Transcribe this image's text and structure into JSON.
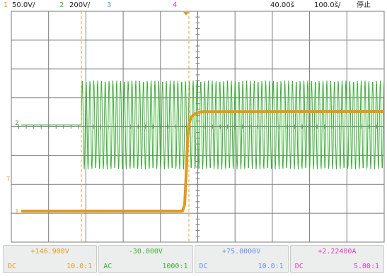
{
  "header": {
    "ch1_num": "1",
    "ch1_scale": "50.0V/",
    "ch2_num": "2",
    "ch2_scale": "200V/",
    "ch3_num": "3",
    "ch4_num": "4",
    "delay": "40.00š",
    "timebase": "100.0š/",
    "run_state": "停止"
  },
  "markers": {
    "ch2_marker": "2",
    "ch1_marker": "1",
    "trigger_level": "T"
  },
  "colors": {
    "ch1": "#e09a1e",
    "ch2": "#3fb03a",
    "ch3": "#6a8ef0",
    "ch4": "#e040c0",
    "grid": "#7a7a7a",
    "cursor": "#e8a33a"
  },
  "channels": [
    {
      "value": "+146.900V",
      "coupling": "DC",
      "probe": "10.0:1",
      "color": "#e09a1e"
    },
    {
      "value": "-30.000V",
      "coupling": "AC",
      "probe": "1000:1",
      "color": "#3fb03a"
    },
    {
      "value": "+75.0000V",
      "coupling": "DC",
      "probe": "10.0:1",
      "color": "#6a8ef0"
    },
    {
      "value": "+2.22400A",
      "coupling": "DC",
      "probe": "5.00:1",
      "color": "#e040c0"
    }
  ]
}
